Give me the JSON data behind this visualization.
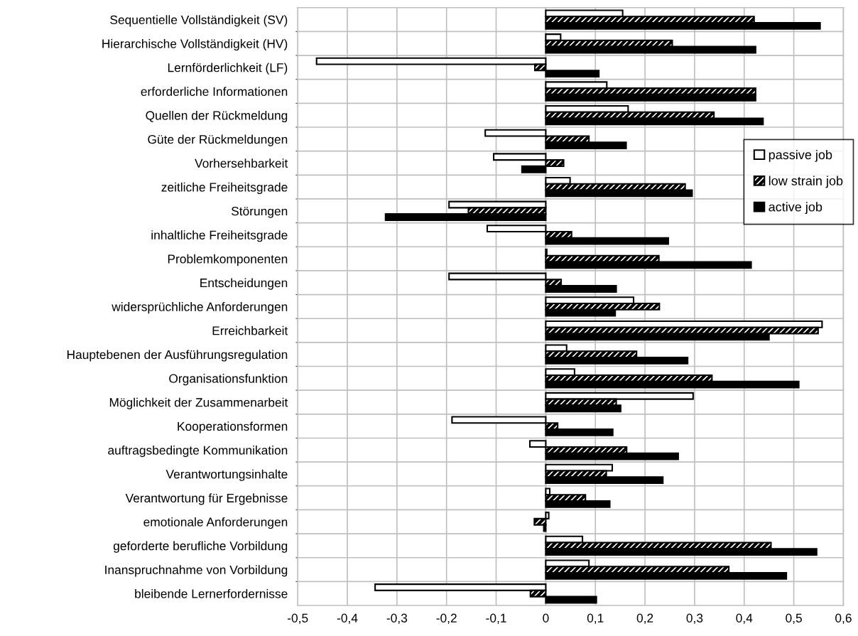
{
  "chart_data": {
    "type": "bar",
    "orientation": "horizontal",
    "categories": [
      "Sequentielle Vollständigkeit (SV)",
      "Hierarchische Vollständigkeit (HV)",
      "Lernförderlichkeit (LF)",
      "erforderliche Informationen",
      "Quellen der Rückmeldung",
      "Güte der Rückmeldungen",
      "Vorhersehbarkeit",
      "zeitliche Freiheitsgrade",
      "Störungen",
      "inhaltliche Freiheitsgrade",
      "Problemkomponenten",
      "Entscheidungen",
      "widersprüchliche Anforderungen",
      "Erreichbarkeit",
      "Hauptebenen der Ausführungsregulation",
      "Organisationsfunktion",
      "Möglichkeit der Zusammenarbeit",
      "Kooperationsformen",
      "auftragsbedingte Kommunikation",
      "Verantwortungsinhalte",
      "Verantwortung für Ergebnisse",
      "emotionale Anforderungen",
      "geforderte berufliche Vorbildung",
      "Inanspruchnahme von Vorbildung",
      "bleibende Lernerfordernisse"
    ],
    "series": [
      {
        "name": "passive job",
        "color": "#ffffff",
        "values": [
          0.155,
          0.03,
          -0.462,
          0.123,
          0.166,
          -0.122,
          -0.105,
          0.049,
          -0.195,
          -0.118,
          0.002,
          -0.195,
          0.177,
          0.557,
          0.042,
          0.058,
          0.297,
          -0.189,
          -0.032,
          0.134,
          0.008,
          0.006,
          0.074,
          0.087,
          -0.344
        ]
      },
      {
        "name": "low strain job",
        "color": "#000000",
        "values": [
          0.42,
          0.255,
          -0.022,
          0.423,
          0.339,
          0.087,
          0.036,
          0.281,
          -0.156,
          0.052,
          0.228,
          0.031,
          0.229,
          0.549,
          0.183,
          0.335,
          0.142,
          0.024,
          0.163,
          0.122,
          0.08,
          -0.023,
          0.454,
          0.369,
          -0.031
        ]
      },
      {
        "name": "active job",
        "color": "#000000",
        "values": [
          0.553,
          0.423,
          0.107,
          0.423,
          0.438,
          0.162,
          -0.048,
          0.295,
          -0.323,
          0.247,
          0.414,
          0.142,
          0.14,
          0.45,
          0.286,
          0.51,
          0.151,
          0.135,
          0.267,
          0.236,
          0.129,
          -0.004,
          0.546,
          0.485,
          0.102
        ]
      }
    ],
    "xlim": [
      -0.5,
      0.6
    ],
    "xticks": [
      {
        "value": -0.5,
        "label": "-0,5"
      },
      {
        "value": -0.4,
        "label": "-0,4"
      },
      {
        "value": -0.3,
        "label": "-0,3"
      },
      {
        "value": -0.2,
        "label": "-0,2"
      },
      {
        "value": -0.1,
        "label": "-0,1"
      },
      0,
      {
        "value": 0.1,
        "label": "0,1"
      },
      {
        "value": 0.2,
        "label": "0,2"
      },
      {
        "value": 0.3,
        "label": "0,3"
      },
      {
        "value": 0.4,
        "label": "0,4"
      },
      {
        "value": 0.5,
        "label": "0,5"
      },
      {
        "value": 0.6,
        "label": "0,6"
      }
    ],
    "grid": true,
    "legend": "right"
  }
}
